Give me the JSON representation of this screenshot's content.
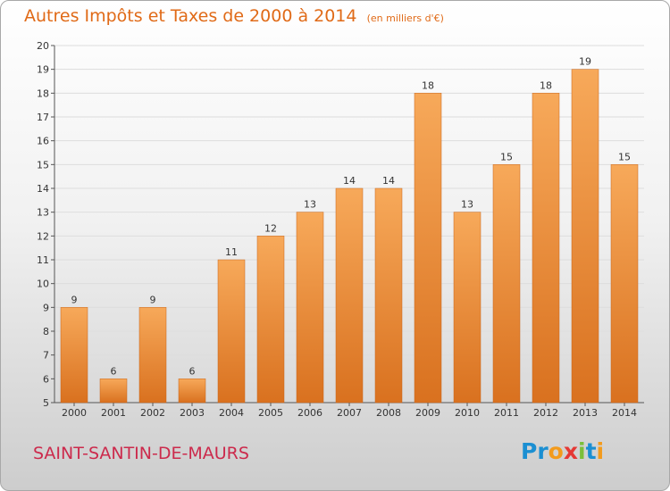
{
  "header": {
    "title": "Autres Impôts et Taxes de 2000 à 2014",
    "unit": "(en milliers d'€)"
  },
  "footer": {
    "commune": "SAINT-SANTIN-DE-MAURS",
    "logo_letters": [
      "P",
      "r",
      "o",
      "x",
      "i",
      "t",
      "i"
    ],
    "logo_colors": [
      "#1b8fd2",
      "#1b8fd2",
      "#f39b1c",
      "#e53935",
      "#7bbf3a",
      "#1b8fd2",
      "#f39b1c"
    ]
  },
  "colors": {
    "accent": "#e06a17",
    "bar_light": "#f7a95a",
    "bar_dark": "#d9711f",
    "commune": "#cc2a4c"
  },
  "chart_data": {
    "type": "bar",
    "title": "Autres Impôts et Taxes de 2000 à 2014",
    "subtitle": "(en milliers d'€)",
    "categories": [
      "2000",
      "2001",
      "2002",
      "2003",
      "2004",
      "2005",
      "2006",
      "2007",
      "2008",
      "2009",
      "2010",
      "2011",
      "2012",
      "2013",
      "2014"
    ],
    "values": [
      9,
      6,
      9,
      6,
      11,
      12,
      13,
      14,
      14,
      18,
      13,
      15,
      18,
      19,
      15
    ],
    "ylim": [
      5,
      20
    ],
    "yticks": [
      5,
      6,
      7,
      8,
      9,
      10,
      11,
      12,
      13,
      14,
      15,
      16,
      17,
      18,
      19,
      20
    ],
    "grid": true,
    "xlabel": "",
    "ylabel": ""
  }
}
